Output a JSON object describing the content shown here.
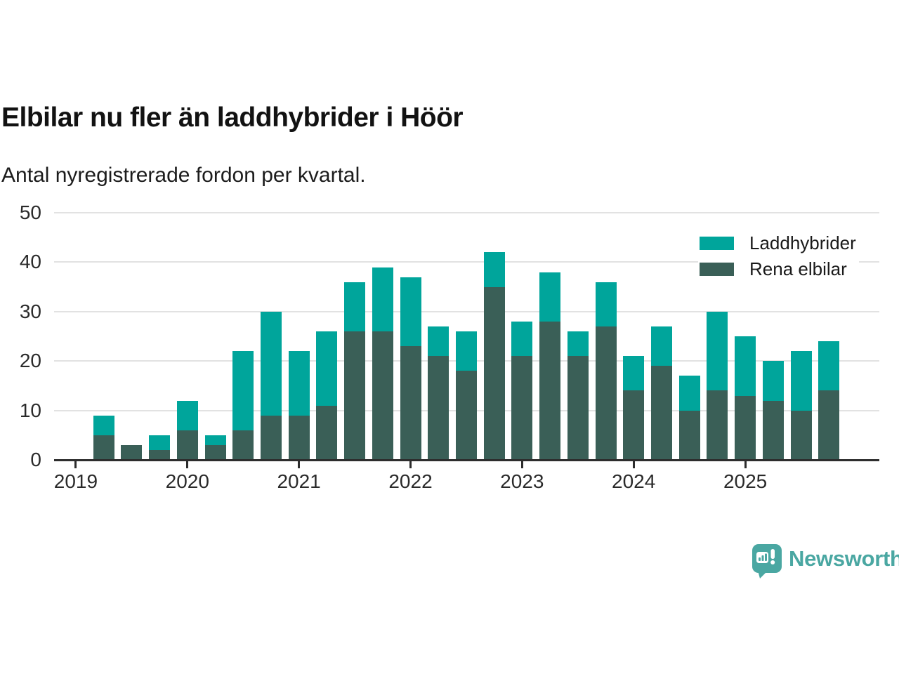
{
  "header": {
    "title": "Elbilar nu fler än laddhybrider i Höör",
    "subtitle": "Antal nyregistrerade fordon per kvartal."
  },
  "branding": {
    "name": "Newsworthy",
    "logo_icon": "speech-bubble-bar-chart-icon",
    "color": "#4aa7a2"
  },
  "colors": {
    "laddhybrider": "#00a59b",
    "rena_elbilar": "#3a5f57",
    "gridline": "#e2e2e2",
    "axis": "#2d2d2d",
    "text": "#1a1a1a"
  },
  "chart_data": {
    "type": "bar",
    "stacked": true,
    "title": "Elbilar nu fler än laddhybrider i Höör",
    "subtitle": "Antal nyregistrerade fordon per kvartal.",
    "categories": [
      "2019 Q2",
      "2019 Q3",
      "2019 Q4",
      "2020 Q1",
      "2020 Q2",
      "2020 Q3",
      "2020 Q4",
      "2021 Q1",
      "2021 Q2",
      "2021 Q3",
      "2021 Q4",
      "2022 Q1",
      "2022 Q2",
      "2022 Q3",
      "2022 Q4",
      "2023 Q1",
      "2023 Q2",
      "2023 Q3",
      "2023 Q4",
      "2024 Q1",
      "2024 Q2",
      "2024 Q3",
      "2024 Q4",
      "2025 Q1",
      "2025 Q2",
      "2025 Q3",
      "2025 Q4"
    ],
    "series": [
      {
        "name": "Laddhybrider",
        "color": "#00a59b",
        "values": [
          4,
          0,
          3,
          6,
          2,
          16,
          21,
          13,
          15,
          10,
          13,
          14,
          6,
          8,
          7,
          7,
          10,
          5,
          9,
          7,
          8,
          7,
          16,
          12,
          8,
          12,
          10
        ]
      },
      {
        "name": "Rena elbilar",
        "color": "#3a5f57",
        "values": [
          5,
          3,
          2,
          6,
          3,
          6,
          9,
          9,
          11,
          26,
          26,
          23,
          21,
          18,
          35,
          21,
          28,
          21,
          27,
          14,
          19,
          10,
          14,
          13,
          12,
          10,
          14
        ]
      }
    ],
    "totals": [
      9,
      3,
      5,
      12,
      5,
      22,
      30,
      22,
      26,
      36,
      39,
      37,
      27,
      26,
      42,
      28,
      38,
      26,
      36,
      21,
      27,
      17,
      30,
      25,
      20,
      22,
      24
    ],
    "stack_bottom_to_top": [
      "Rena elbilar",
      "Laddhybrider"
    ],
    "x_tick_labels": [
      "2019",
      "2020",
      "2021",
      "2022",
      "2023",
      "2024",
      "2025"
    ],
    "y_ticks": [
      0,
      10,
      20,
      30,
      40,
      50
    ],
    "ylim": [
      0,
      50
    ],
    "grid": "horizontal-only",
    "legend_position": "top-right"
  }
}
